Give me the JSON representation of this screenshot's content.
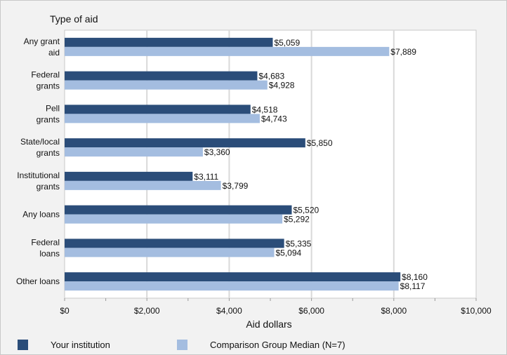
{
  "chart_data": {
    "type": "bar",
    "orientation": "horizontal",
    "ytitle": "Type of aid",
    "xlabel": "Aid dollars",
    "categories": [
      [
        "Any grant",
        "aid"
      ],
      [
        "Federal",
        "grants"
      ],
      [
        "Pell",
        "grants"
      ],
      [
        "State/local",
        "grants"
      ],
      [
        "Institutional",
        "grants"
      ],
      [
        "Any loans"
      ],
      [
        "Federal",
        "loans"
      ],
      [
        "Other loans"
      ]
    ],
    "series": [
      {
        "name": "Your institution",
        "color": "#2b4d79",
        "values": [
          5059,
          4683,
          4518,
          5850,
          3111,
          5520,
          5335,
          8160
        ],
        "labels": [
          "$5,059",
          "$4,683",
          "$4,518",
          "$5,850",
          "$3,111",
          "$5,520",
          "$5,335",
          "$8,160"
        ]
      },
      {
        "name": "Comparison Group Median (N=7)",
        "color": "#a4bde0",
        "values": [
          7889,
          4928,
          4743,
          3360,
          3799,
          5292,
          5094,
          8117
        ],
        "labels": [
          "$7,889",
          "$4,928",
          "$4,743",
          "$3,360",
          "$3,799",
          "$5,292",
          "$5,094",
          "$8,117"
        ]
      }
    ],
    "xlim": [
      0,
      10000
    ],
    "xticks": [
      0,
      2000,
      4000,
      6000,
      8000,
      10000
    ],
    "xtick_labels": [
      "$0",
      "$2,000",
      "$4,000",
      "$6,000",
      "$8,000",
      "$10,000"
    ],
    "grid": true,
    "legend_position": "bottom"
  }
}
